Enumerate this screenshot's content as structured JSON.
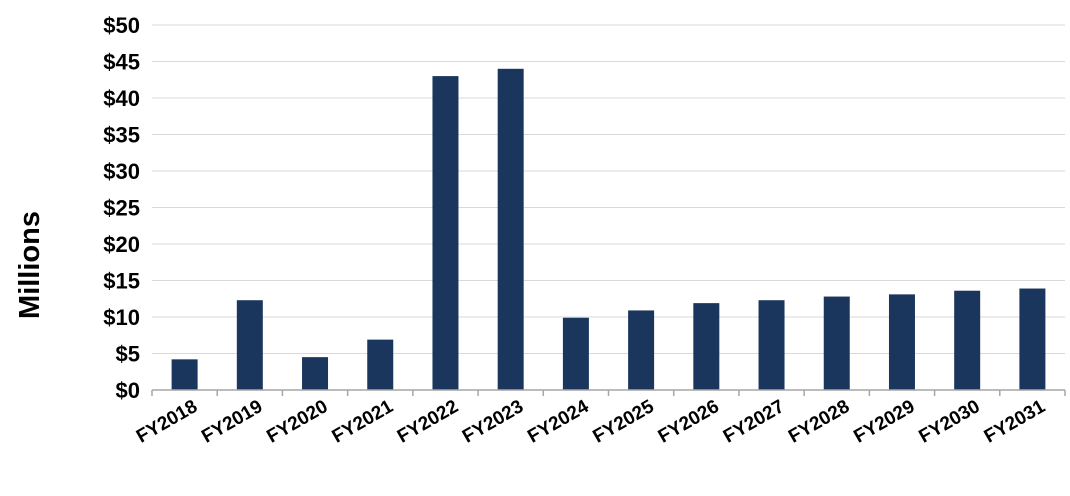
{
  "chart_data": {
    "type": "bar",
    "title": "",
    "xlabel": "",
    "ylabel": "Millions",
    "categories": [
      "FY2018",
      "FY2019",
      "FY2020",
      "FY2021",
      "FY2022",
      "FY2023",
      "FY2024",
      "FY2025",
      "FY2026",
      "FY2027",
      "FY2028",
      "FY2029",
      "FY2030",
      "FY2031"
    ],
    "values": [
      4.2,
      12.3,
      4.5,
      6.9,
      43.0,
      44.0,
      9.9,
      10.9,
      11.9,
      12.3,
      12.8,
      13.1,
      13.6,
      13.9
    ],
    "ylim": [
      0,
      50
    ],
    "ytick_values": [
      0,
      5,
      10,
      15,
      20,
      25,
      30,
      35,
      40,
      45,
      50
    ],
    "ytick_labels": [
      "$0",
      "$5",
      "$10",
      "$15",
      "$20",
      "$25",
      "$30",
      "$35",
      "$40",
      "$45",
      "$50"
    ],
    "grid": true,
    "legend": "none",
    "bar_color": "#1B365D",
    "grid_color": "#D9D9D9",
    "axis_color": "#A6A6A6"
  }
}
